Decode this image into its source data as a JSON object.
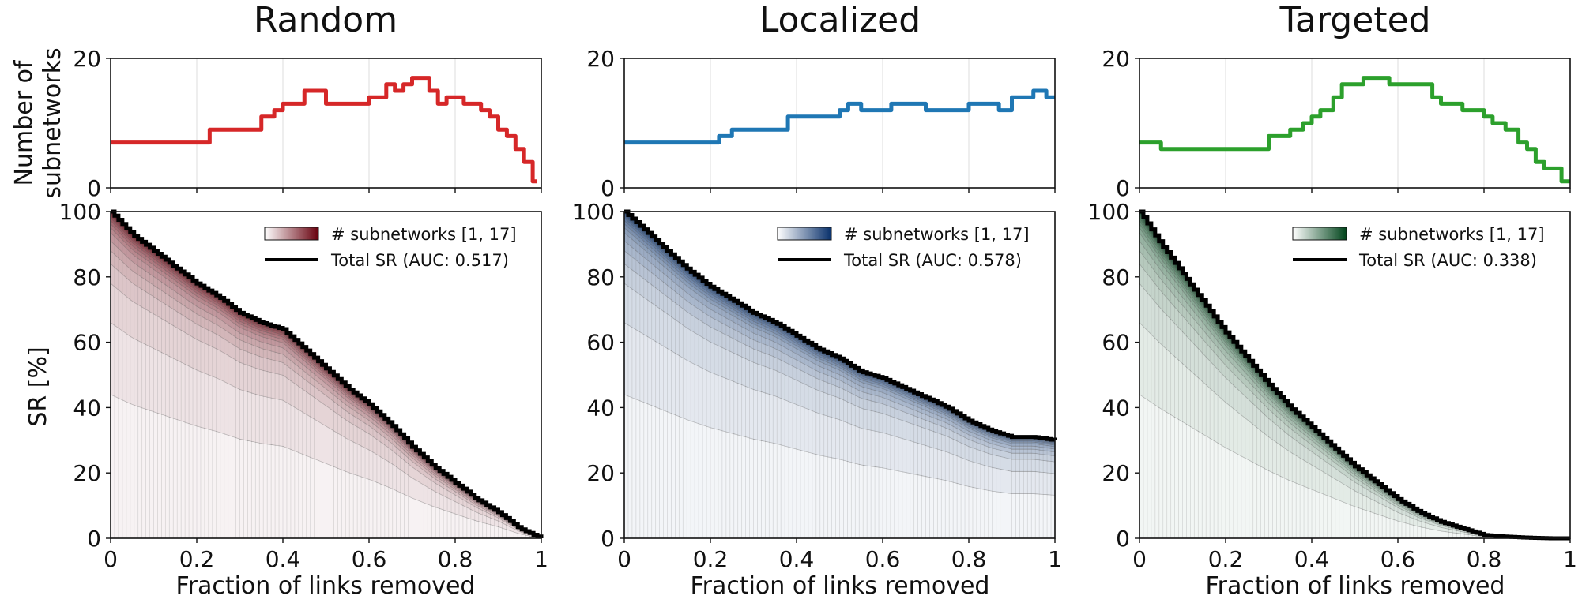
{
  "figure": {
    "top_ylabel_line1": "Number of",
    "top_ylabel_line2": "subnetworks",
    "bottom_ylabel": "SR [%]",
    "xlabel": "Fraction of links removed",
    "top_yticks": [
      "0",
      "20"
    ],
    "bottom_yticks": [
      "0",
      "20",
      "40",
      "60",
      "80",
      "100"
    ],
    "xticks": [
      "0",
      "0.2",
      "0.4",
      "0.6",
      "0.8",
      "1"
    ]
  },
  "chart_data": [
    {
      "type": "line",
      "title": "Random",
      "color": "#d62728",
      "cmap": [
        "#fbeee9",
        "#67000d"
      ],
      "xlabel": "Fraction of links removed",
      "ylabel": "Number of subnetworks",
      "xlim": [
        0,
        1
      ],
      "ylim": [
        0,
        20
      ],
      "x": [
        0,
        0.05,
        0.1,
        0.15,
        0.2,
        0.23,
        0.28,
        0.33,
        0.35,
        0.38,
        0.4,
        0.43,
        0.45,
        0.48,
        0.5,
        0.53,
        0.55,
        0.58,
        0.6,
        0.62,
        0.64,
        0.66,
        0.68,
        0.7,
        0.72,
        0.74,
        0.76,
        0.78,
        0.8,
        0.82,
        0.84,
        0.86,
        0.88,
        0.9,
        0.92,
        0.94,
        0.96,
        0.98,
        0.99
      ],
      "y": [
        7,
        7,
        7,
        7,
        7,
        9,
        9,
        9,
        11,
        12,
        13,
        13,
        15,
        15,
        13,
        13,
        13,
        13,
        14,
        14,
        16,
        15,
        16,
        17,
        17,
        15,
        13,
        14,
        14,
        13,
        13,
        12,
        11,
        9,
        8,
        6,
        4,
        1,
        1
      ]
    },
    {
      "type": "area",
      "title": "Random",
      "legend": [
        "# subnetworks [1, 17]",
        "Total SR (AUC: 0.517)"
      ],
      "xlabel": "Fraction of links removed",
      "ylabel": "SR [%]",
      "xlim": [
        0,
        1
      ],
      "ylim": [
        0,
        100
      ],
      "auc": 0.517,
      "n_subnetworks": 17,
      "x": [
        0,
        0.05,
        0.1,
        0.15,
        0.2,
        0.25,
        0.3,
        0.35,
        0.4,
        0.45,
        0.5,
        0.55,
        0.6,
        0.65,
        0.7,
        0.75,
        0.8,
        0.85,
        0.9,
        0.95,
        1
      ],
      "total_sr": [
        100,
        93,
        88,
        83,
        78,
        74,
        69,
        66,
        64,
        58,
        52,
        46,
        41,
        35,
        28,
        22,
        17,
        12,
        8,
        3,
        0
      ]
    },
    {
      "type": "line",
      "title": "Localized",
      "color": "#1f77b4",
      "cmap": [
        "#f2f7fc",
        "#08306b"
      ],
      "xlabel": "Fraction of links removed",
      "ylabel": "Number of subnetworks",
      "xlim": [
        0,
        1
      ],
      "ylim": [
        0,
        20
      ],
      "x": [
        0,
        0.05,
        0.1,
        0.15,
        0.2,
        0.22,
        0.25,
        0.3,
        0.35,
        0.38,
        0.42,
        0.45,
        0.5,
        0.52,
        0.55,
        0.58,
        0.62,
        0.65,
        0.7,
        0.75,
        0.8,
        0.85,
        0.87,
        0.9,
        0.92,
        0.95,
        0.98,
        1
      ],
      "y": [
        7,
        7,
        7,
        7,
        7,
        8,
        9,
        9,
        9,
        11,
        11,
        11,
        12,
        13,
        12,
        12,
        13,
        13,
        12,
        12,
        13,
        13,
        12,
        14,
        14,
        15,
        14,
        14
      ]
    },
    {
      "type": "area",
      "title": "Localized",
      "legend": [
        "# subnetworks [1, 17]",
        "Total SR (AUC: 0.578)"
      ],
      "xlabel": "Fraction of links removed",
      "ylabel": "SR [%]",
      "xlim": [
        0,
        1
      ],
      "ylim": [
        0,
        100
      ],
      "auc": 0.578,
      "n_subnetworks": 17,
      "x": [
        0,
        0.05,
        0.1,
        0.15,
        0.2,
        0.25,
        0.3,
        0.35,
        0.4,
        0.45,
        0.5,
        0.55,
        0.6,
        0.65,
        0.7,
        0.75,
        0.8,
        0.85,
        0.9,
        0.95,
        1
      ],
      "total_sr": [
        100,
        94,
        88,
        82,
        77,
        73,
        69,
        66,
        62,
        58,
        55,
        51,
        49,
        46,
        43,
        40,
        36,
        33,
        31,
        31,
        30
      ]
    },
    {
      "type": "line",
      "title": "Targeted",
      "color": "#2ca02c",
      "cmap": [
        "#f1f9ee",
        "#00441b"
      ],
      "xlabel": "Fraction of links removed",
      "ylabel": "Number of subnetworks",
      "xlim": [
        0,
        1
      ],
      "ylim": [
        0,
        20
      ],
      "x": [
        0,
        0.04,
        0.05,
        0.1,
        0.15,
        0.2,
        0.25,
        0.28,
        0.3,
        0.33,
        0.35,
        0.38,
        0.4,
        0.42,
        0.45,
        0.47,
        0.5,
        0.52,
        0.55,
        0.58,
        0.6,
        0.65,
        0.68,
        0.7,
        0.72,
        0.75,
        0.78,
        0.8,
        0.82,
        0.85,
        0.88,
        0.9,
        0.92,
        0.94,
        0.96,
        0.98,
        1
      ],
      "y": [
        7,
        7,
        6,
        6,
        6,
        6,
        6,
        6,
        8,
        8,
        9,
        10,
        11,
        12,
        14,
        16,
        16,
        17,
        17,
        16,
        16,
        16,
        14,
        13,
        13,
        12,
        12,
        11,
        10,
        9,
        7,
        6,
        4,
        3,
        3,
        1,
        1
      ]
    },
    {
      "type": "area",
      "title": "Targeted",
      "legend": [
        "# subnetworks [1, 17]",
        "Total SR (AUC: 0.338)"
      ],
      "xlabel": "Fraction of links removed",
      "ylabel": "SR [%]",
      "xlim": [
        0,
        1
      ],
      "ylim": [
        0,
        100
      ],
      "auc": 0.338,
      "n_subnetworks": 17,
      "x": [
        0,
        0.05,
        0.1,
        0.15,
        0.2,
        0.25,
        0.3,
        0.35,
        0.4,
        0.45,
        0.5,
        0.55,
        0.6,
        0.65,
        0.7,
        0.75,
        0.8,
        0.85,
        0.9,
        0.95,
        1
      ],
      "total_sr": [
        100,
        90,
        81,
        72,
        63,
        55,
        47,
        40,
        34,
        28,
        22,
        17,
        12,
        8,
        5,
        3,
        1,
        0.5,
        0.2,
        0,
        0
      ]
    }
  ]
}
